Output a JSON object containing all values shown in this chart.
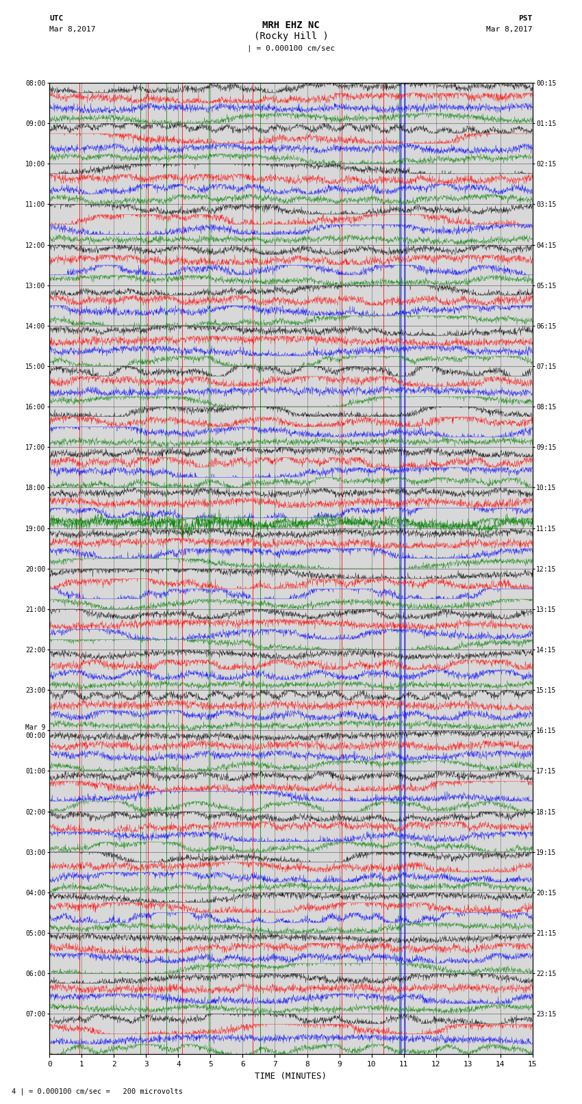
{
  "title_line1": "MRH EHZ NC",
  "title_line2": "(Rocky Hill )",
  "scale_label": "| = 0.000100 cm/sec",
  "footer_label": "4 | = 0.000100 cm/sec =   200 microvolts",
  "utc_label": "UTC\nMar 8,2017",
  "pst_label": "PST\nMar 8,2017",
  "xlabel": "TIME (MINUTES)",
  "left_times": [
    "08:00",
    "09:00",
    "10:00",
    "11:00",
    "12:00",
    "13:00",
    "14:00",
    "15:00",
    "16:00",
    "17:00",
    "18:00",
    "19:00",
    "20:00",
    "21:00",
    "22:00",
    "23:00",
    "Mar 9\n00:00",
    "01:00",
    "02:00",
    "03:00",
    "04:00",
    "05:00",
    "06:00",
    "07:00"
  ],
  "right_times": [
    "00:15",
    "01:15",
    "02:15",
    "03:15",
    "04:15",
    "05:15",
    "06:15",
    "07:15",
    "08:15",
    "09:15",
    "10:15",
    "11:15",
    "12:15",
    "13:15",
    "14:15",
    "15:15",
    "16:15",
    "17:15",
    "18:15",
    "19:15",
    "20:15",
    "21:15",
    "22:15",
    "23:15"
  ],
  "n_rows": 24,
  "n_traces_per_row": 4,
  "trace_colors": [
    "black",
    "red",
    "blue",
    "green"
  ],
  "minutes_per_row": 15,
  "bg_color": "#ffffff",
  "plot_bg": "#d8d8d8",
  "seed": 42,
  "vert_lines_red": [
    0.93,
    3.05,
    4.13,
    6.3,
    9.08,
    10.38
  ],
  "vert_lines_green": [
    2.82,
    3.62,
    4.95,
    6.55,
    10.85
  ],
  "vert_lines_blue": [
    10.9,
    11.02
  ],
  "vert_line_lw": 0.7
}
